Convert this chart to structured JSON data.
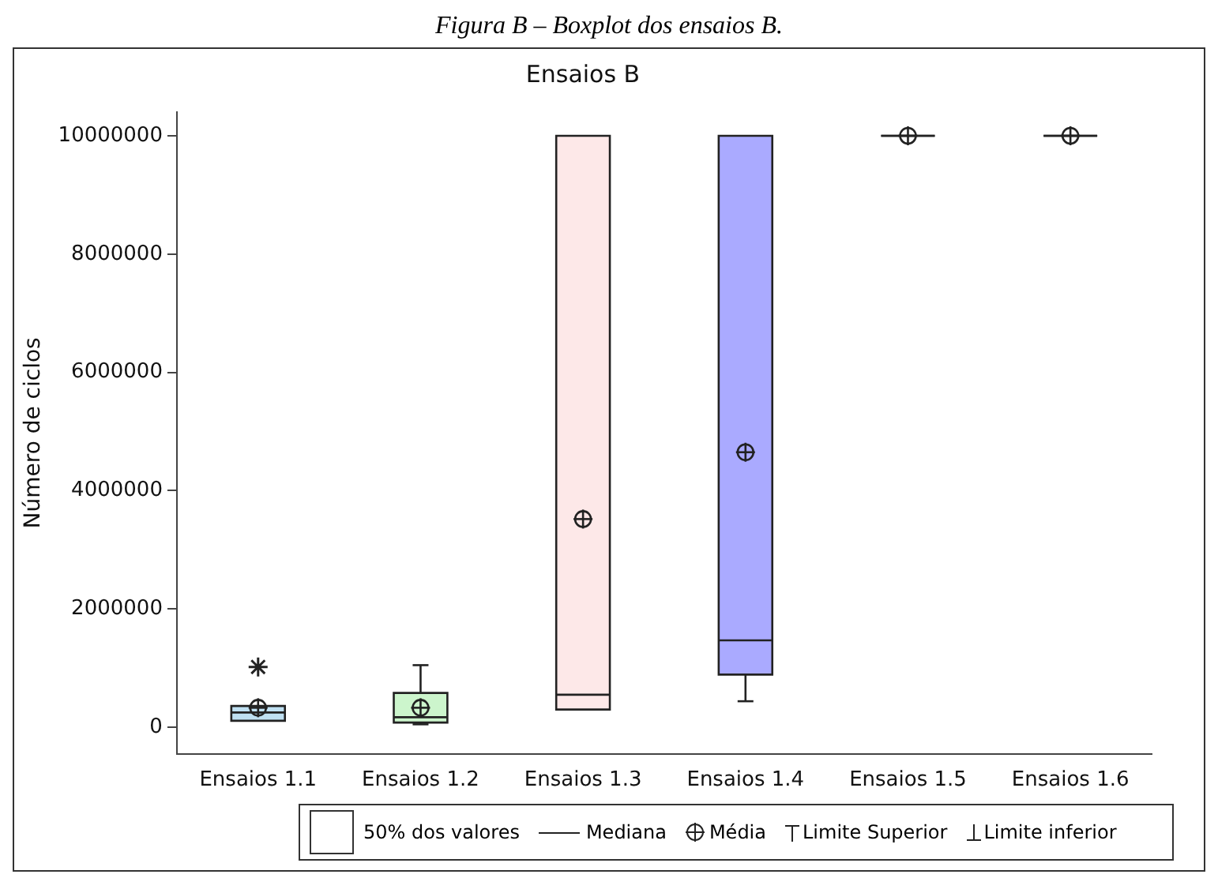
{
  "chart_data": {
    "type": "box",
    "title": "Ensaios B",
    "ylabel": "Número de ciclos",
    "categories": [
      "Ensaios 1.1",
      "Ensaios 1.2",
      "Ensaios 1.3",
      "Ensaios 1.4",
      "Ensaios 1.5",
      "Ensaios 1.6"
    ],
    "colors": [
      "#bfe0f2",
      "#ccf5cc",
      "#fde8e8",
      "#aaaaff",
      "#222222",
      "#222222"
    ],
    "boxes": [
      {
        "low": 110000,
        "q1": 110000,
        "median": 250000,
        "q3": 360000,
        "high": 360000,
        "mean": 330000,
        "outliers": [
          1020000
        ]
      },
      {
        "low": 50000,
        "q1": 80000,
        "median": 170000,
        "q3": 580000,
        "high": 1050000,
        "mean": 330000
      },
      {
        "low": 300000,
        "q1": 300000,
        "median": 550000,
        "q3": 10000000,
        "high": 10000000,
        "mean": 3520000
      },
      {
        "low": 440000,
        "q1": 890000,
        "median": 1470000,
        "q3": 10000000,
        "high": 10000000,
        "mean": 4650000
      },
      {
        "low": 10000000,
        "q1": 10000000,
        "median": 10000000,
        "q3": 10000000,
        "high": 10000000,
        "mean": 10000000
      },
      {
        "low": 10000000,
        "q1": 10000000,
        "median": 10000000,
        "q3": 10000000,
        "high": 10000000,
        "mean": 10000000
      }
    ],
    "ylim": [
      -450000,
      10400000
    ],
    "yticks": [
      0,
      2000000,
      4000000,
      6000000,
      8000000,
      10000000
    ],
    "grid": false,
    "annotations": [
      "Figura B – Boxplot dos ensaios B.",
      "50%  dos valores",
      "Mediana",
      "Média",
      "Limite Superior",
      "Limite inferior"
    ]
  }
}
